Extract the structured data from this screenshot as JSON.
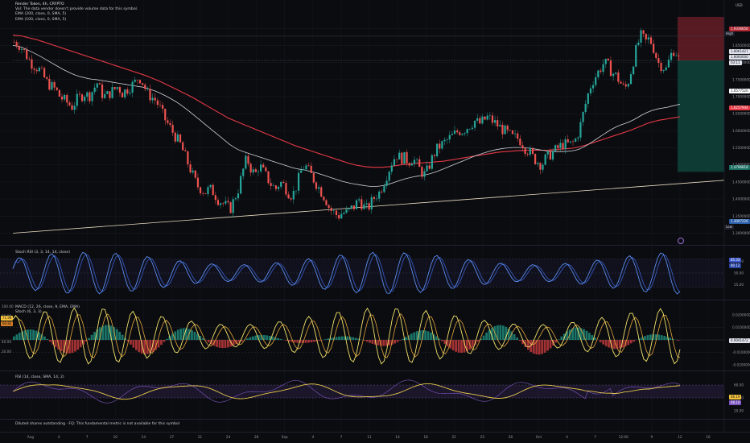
{
  "main": {
    "title": "Render Token, 4h, CRYPTO",
    "vol_note": "Vol: The data vendor doesn't provide volume data for this symbol.",
    "ema1": "EMA (200, close, 0, SMA, 5)",
    "ema2": "EMA (100, close, 0, SMA, 5)",
    "currency": "USD",
    "high_tag": "High",
    "low_tag": "Low",
    "price_tags": {
      "top": "1.9336656",
      "current": "1.8061427",
      "current_sub": "1.8060000",
      "current_tiny": "03:11",
      "ema_gray": "1.6577520",
      "ema_red": "1.6257944",
      "sl": "1.4796818",
      "low": "1.3097226"
    },
    "y_ticks": [
      "1.9000000",
      "1.8500000",
      "1.8000000",
      "1.7500000",
      "1.7000000",
      "1.6500000",
      "1.6000000",
      "1.5500000",
      "1.5000000",
      "1.4500000",
      "1.4000000",
      "1.3500000",
      "1.3000000"
    ]
  },
  "stoch_rsi": {
    "label": "Stoch RSI (3, 3, 14, 14, close)",
    "ticks": [
      "75.00",
      "50.00",
      "25.00"
    ],
    "tag": "85.33",
    "tag2": "80.12"
  },
  "macd": {
    "label": "MACD (12, 26, close, 9, EMA, EMA)",
    "label2": "Stoch (6, 3, 3)",
    "left_ticks": [
      "100.00",
      "80.00",
      "40.00",
      "20.00"
    ],
    "ticks": [
      "0.0200000",
      "0.0100000",
      "-0.0100000",
      "-0.0200000"
    ],
    "tag": "0.0041472",
    "tag_left": "71.98",
    "tag_left2": "60.82"
  },
  "rsi": {
    "label": "RSI (14, close, SMA, 14, 2)",
    "ticks": [
      "60.00",
      "40.00",
      "20.00"
    ],
    "tag": "46.19",
    "tag2": "48.10"
  },
  "fundamental": {
    "label": "Diluted shares outstanding · FQ: This fundamental metric is not available for this symbol"
  },
  "x_axis": {
    "labels": [
      "Aug",
      "4",
      "7",
      "10",
      "14",
      "17",
      "21",
      "24",
      "28",
      "Sep",
      "4",
      "7",
      "11",
      "14",
      "18",
      "21",
      "25",
      "28",
      "Oct",
      "4",
      "7",
      "12:00",
      "9",
      "12",
      "16"
    ]
  },
  "colors": {
    "bg": "#0b0c10",
    "up": "#26a69a",
    "down": "#ef5350",
    "ema200": "#e53945",
    "ema100": "#cfd2d8",
    "trend": "#e8dcc0",
    "stoch_k": "#5b8def",
    "stoch_d": "#3355bb",
    "macd_line": "#f3e36b",
    "rsi_line": "#e7c94b",
    "rsi_alt": "#7e57c2"
  },
  "chart_data": {
    "type": "candlestick",
    "interval": "4h",
    "symbol": "Render Token",
    "ylim": [
      1.28,
      1.95
    ],
    "close_path": [
      1.86,
      1.855,
      1.84,
      1.82,
      1.8,
      1.79,
      1.78,
      1.76,
      1.74,
      1.73,
      1.72,
      1.7,
      1.69,
      1.68,
      1.67,
      1.69,
      1.7,
      1.71,
      1.7,
      1.72,
      1.74,
      1.71,
      1.7,
      1.71,
      1.72,
      1.73,
      1.71,
      1.72,
      1.73,
      1.74,
      1.76,
      1.74,
      1.71,
      1.7,
      1.69,
      1.67,
      1.64,
      1.62,
      1.6,
      1.58,
      1.56,
      1.53,
      1.5,
      1.47,
      1.44,
      1.43,
      1.42,
      1.43,
      1.42,
      1.4,
      1.39,
      1.38,
      1.37,
      1.4,
      1.43,
      1.48,
      1.52,
      1.49,
      1.47,
      1.5,
      1.48,
      1.46,
      1.44,
      1.43,
      1.45,
      1.44,
      1.42,
      1.41,
      1.44,
      1.48,
      1.5,
      1.48,
      1.46,
      1.44,
      1.42,
      1.4,
      1.37,
      1.36,
      1.35,
      1.36,
      1.36,
      1.37,
      1.38,
      1.4,
      1.38,
      1.37,
      1.39,
      1.41,
      1.42,
      1.45,
      1.48,
      1.51,
      1.53,
      1.52,
      1.52,
      1.51,
      1.52,
      1.5,
      1.48,
      1.47,
      1.5,
      1.53,
      1.55,
      1.56,
      1.57,
      1.58,
      1.59,
      1.6,
      1.6,
      1.61,
      1.62,
      1.63,
      1.62,
      1.63,
      1.64,
      1.63,
      1.62,
      1.61,
      1.6,
      1.59,
      1.58,
      1.58,
      1.57,
      1.55,
      1.54,
      1.52,
      1.51,
      1.5,
      1.52,
      1.53,
      1.54,
      1.55,
      1.56,
      1.56,
      1.56,
      1.57,
      1.6,
      1.65,
      1.7,
      1.74,
      1.76,
      1.78,
      1.8,
      1.79,
      1.77,
      1.76,
      1.74,
      1.72,
      1.75,
      1.8,
      1.85,
      1.88,
      1.86,
      1.87,
      1.84,
      1.8,
      1.79,
      1.78,
      1.82,
      1.84,
      1.81
    ],
    "ema200": [
      1.88,
      1.879,
      1.878,
      1.875,
      1.872,
      1.869,
      1.866,
      1.862,
      1.858,
      1.854,
      1.85,
      1.846,
      1.842,
      1.838,
      1.834,
      1.83,
      1.826,
      1.822,
      1.818,
      1.814,
      1.81,
      1.806,
      1.802,
      1.798,
      1.794,
      1.79,
      1.786,
      1.782,
      1.778,
      1.774,
      1.77,
      1.766,
      1.762,
      1.757,
      1.752,
      1.747,
      1.742,
      1.736,
      1.73,
      1.724,
      1.718,
      1.712,
      1.706,
      1.7,
      1.693,
      1.686,
      1.679,
      1.672,
      1.665,
      1.658,
      1.651,
      1.644,
      1.637,
      1.632,
      1.627,
      1.622,
      1.617,
      1.612,
      1.607,
      1.602,
      1.597,
      1.592,
      1.587,
      1.582,
      1.577,
      1.572,
      1.567,
      1.562,
      1.557,
      1.553,
      1.549,
      1.545,
      1.541,
      1.537,
      1.533,
      1.529,
      1.525,
      1.521,
      1.517,
      1.513,
      1.509,
      1.505,
      1.502,
      1.499,
      1.497,
      1.495,
      1.494,
      1.493,
      1.493,
      1.493,
      1.494,
      1.495,
      1.497,
      1.499,
      1.501,
      1.502,
      1.503,
      1.504,
      1.505,
      1.506,
      1.507,
      1.508,
      1.509,
      1.51,
      1.511,
      1.513,
      1.515,
      1.517,
      1.519,
      1.521,
      1.523,
      1.525,
      1.527,
      1.529,
      1.531,
      1.533,
      1.535,
      1.537,
      1.538,
      1.539,
      1.54,
      1.541,
      1.542,
      1.542,
      1.543,
      1.543,
      1.543,
      1.543,
      1.543,
      1.543,
      1.544,
      1.545,
      1.546,
      1.547,
      1.548,
      1.549,
      1.551,
      1.554,
      1.557,
      1.561,
      1.565,
      1.569,
      1.573,
      1.577,
      1.581,
      1.585,
      1.589,
      1.593,
      1.597,
      1.601,
      1.606,
      1.611,
      1.616,
      1.621,
      1.625,
      1.628,
      1.631,
      1.633,
      1.635,
      1.637,
      1.639,
      1.641
    ],
    "ema100": [
      1.85,
      1.848,
      1.845,
      1.84,
      1.834,
      1.828,
      1.822,
      1.815,
      1.808,
      1.801,
      1.794,
      1.787,
      1.78,
      1.774,
      1.768,
      1.763,
      1.759,
      1.756,
      1.753,
      1.751,
      1.75,
      1.748,
      1.746,
      1.744,
      1.742,
      1.74,
      1.738,
      1.736,
      1.734,
      1.732,
      1.73,
      1.728,
      1.725,
      1.721,
      1.717,
      1.712,
      1.706,
      1.7,
      1.693,
      1.686,
      1.678,
      1.669,
      1.66,
      1.65,
      1.64,
      1.63,
      1.62,
      1.61,
      1.6,
      1.59,
      1.58,
      1.57,
      1.56,
      1.552,
      1.545,
      1.54,
      1.536,
      1.532,
      1.528,
      1.524,
      1.52,
      1.516,
      1.512,
      1.508,
      1.504,
      1.5,
      1.496,
      1.492,
      1.489,
      1.487,
      1.485,
      1.482,
      1.479,
      1.476,
      1.472,
      1.468,
      1.464,
      1.46,
      1.456,
      1.452,
      1.449,
      1.446,
      1.444,
      1.442,
      1.44,
      1.438,
      1.437,
      1.437,
      1.438,
      1.44,
      1.443,
      1.447,
      1.451,
      1.455,
      1.459,
      1.462,
      1.465,
      1.467,
      1.469,
      1.471,
      1.474,
      1.478,
      1.482,
      1.487,
      1.492,
      1.497,
      1.502,
      1.507,
      1.512,
      1.517,
      1.522,
      1.527,
      1.531,
      1.535,
      1.539,
      1.542,
      1.545,
      1.547,
      1.549,
      1.55,
      1.551,
      1.551,
      1.551,
      1.55,
      1.549,
      1.547,
      1.545,
      1.543,
      1.541,
      1.54,
      1.539,
      1.539,
      1.539,
      1.54,
      1.541,
      1.543,
      1.547,
      1.553,
      1.56,
      1.568,
      1.576,
      1.584,
      1.592,
      1.6,
      1.607,
      1.613,
      1.618,
      1.622,
      1.627,
      1.633,
      1.64,
      1.647,
      1.653,
      1.658,
      1.662,
      1.665,
      1.667,
      1.669,
      1.672,
      1.675,
      1.678
    ],
    "trendline": [
      [
        0,
        1.3
      ],
      [
        1,
        1.455
      ]
    ],
    "position_box": {
      "entry": 1.806,
      "target": 1.9336656,
      "stop": 1.4796818
    }
  }
}
